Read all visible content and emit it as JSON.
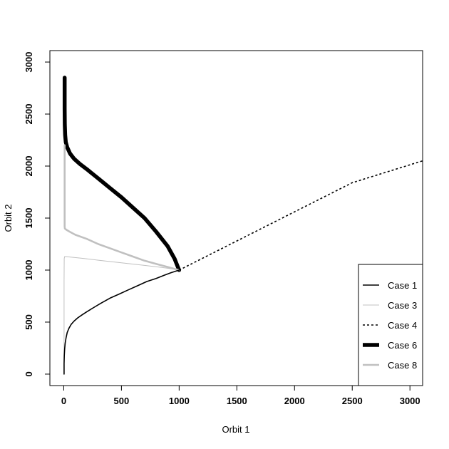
{
  "chart_data": {
    "type": "line",
    "title": "",
    "xlabel": "Orbit 1",
    "ylabel": "Orbit 2",
    "xlim": [
      -120,
      3110
    ],
    "ylim": [
      -110,
      3110
    ],
    "xticks": [
      0,
      500,
      1000,
      1500,
      2000,
      2500,
      3000
    ],
    "yticks": [
      0,
      500,
      1000,
      1500,
      2000,
      2500,
      3000
    ],
    "grid": false,
    "legend_position": "bottom-right",
    "series": [
      {
        "name": "Case 1",
        "color": "#000000",
        "style": "solid",
        "weight": "normal",
        "x": [
          3,
          3,
          5,
          8,
          13,
          20,
          30,
          45,
          65,
          90,
          120,
          160,
          200,
          260,
          320,
          400,
          480,
          560,
          640,
          720,
          800,
          870,
          930,
          980,
          1000
        ],
        "y": [
          0,
          100,
          180,
          240,
          300,
          350,
          400,
          440,
          480,
          510,
          540,
          570,
          600,
          640,
          680,
          730,
          770,
          810,
          850,
          890,
          920,
          950,
          975,
          993,
          1000
        ]
      },
      {
        "name": "Case 3",
        "color": "#c0c0c0",
        "style": "solid",
        "weight": "thin",
        "x": [
          3,
          3,
          3,
          4,
          8,
          20,
          60,
          150,
          300,
          500,
          700,
          850,
          950,
          1000
        ],
        "y": [
          0,
          400,
          900,
          1110,
          1130,
          1130,
          1125,
          1115,
          1095,
          1070,
          1045,
          1025,
          1010,
          1000
        ]
      },
      {
        "name": "Case 4",
        "color": "#000000",
        "style": "dashed",
        "weight": "normal",
        "x": [
          1000,
          1500,
          2000,
          2500,
          3110
        ],
        "y": [
          1000,
          1280,
          1560,
          1840,
          2050
        ]
      },
      {
        "name": "Case 6",
        "color": "#000000",
        "style": "solid",
        "weight": "heavy",
        "x": [
          8,
          8,
          8,
          9,
          12,
          18,
          30,
          55,
          90,
          140,
          200,
          300,
          400,
          500,
          600,
          700,
          800,
          900,
          960,
          1000
        ],
        "y": [
          2850,
          2700,
          2550,
          2400,
          2300,
          2230,
          2180,
          2120,
          2070,
          2020,
          1970,
          1880,
          1790,
          1700,
          1600,
          1500,
          1370,
          1230,
          1110,
          1000
        ]
      },
      {
        "name": "Case 8",
        "color": "#c0c0c0",
        "style": "solid",
        "weight": "medium",
        "x": [
          8,
          8,
          8,
          10,
          20,
          50,
          100,
          200,
          300,
          400,
          500,
          600,
          700,
          800,
          900,
          1000
        ],
        "y": [
          2200,
          1800,
          1420,
          1400,
          1390,
          1370,
          1340,
          1300,
          1250,
          1210,
          1170,
          1130,
          1090,
          1060,
          1030,
          1000
        ]
      }
    ]
  }
}
